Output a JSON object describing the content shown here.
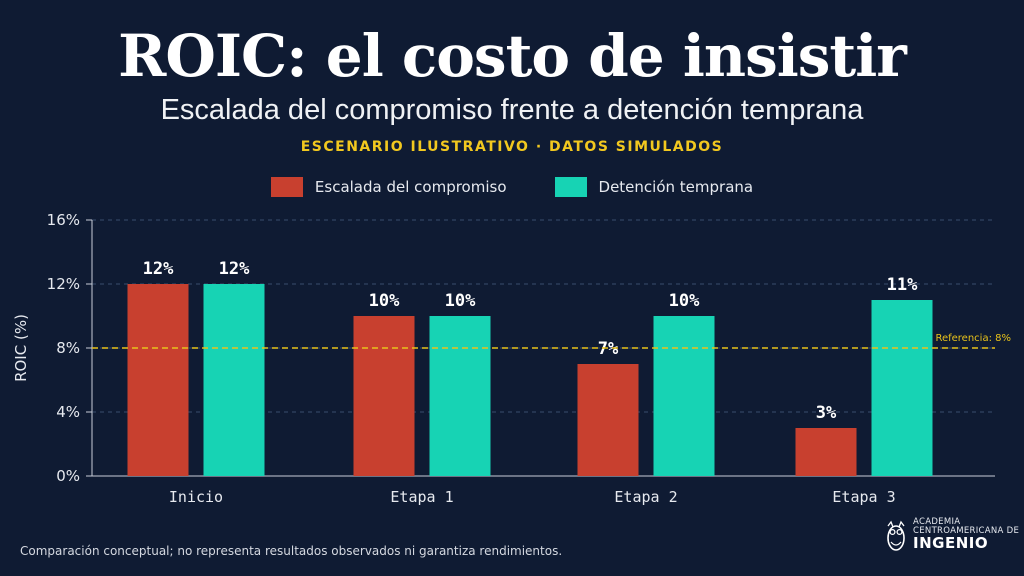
{
  "header": {
    "title": "ROIC: el costo de insistir",
    "subtitle": "Escalada del compromiso frente a detención temprana",
    "tagline": "ESCENARIO ILUSTRATIVO · DATOS SIMULADOS"
  },
  "colors": {
    "series_a": "#c8402f",
    "series_b": "#17d3b4",
    "reference": "#e8c21a",
    "grid": "#3a4c6e",
    "axis_text": "#e6e9ef"
  },
  "chart_data": {
    "type": "bar",
    "categories": [
      "Inicio",
      "Etapa 1",
      "Etapa 2",
      "Etapa 3"
    ],
    "series": [
      {
        "name": "Escalada del compromiso",
        "values": [
          12,
          10,
          7,
          3
        ],
        "labels": [
          "12%",
          "10%",
          "7%",
          "3%"
        ]
      },
      {
        "name": "Detención temprana",
        "values": [
          12,
          10,
          10,
          11
        ],
        "labels": [
          "12%",
          "10%",
          "10%",
          "11%"
        ]
      }
    ],
    "ylabel": "ROIC (%)",
    "ylim": [
      0,
      16
    ],
    "yticks": [
      0,
      4,
      8,
      12,
      16
    ],
    "ytick_labels": [
      "0%",
      "4%",
      "8%",
      "12%",
      "16%"
    ],
    "grid": true,
    "legend_position": "top-center",
    "reference_line": {
      "value": 8,
      "label": "Referencia: 8%"
    }
  },
  "footer": {
    "note": "Comparación conceptual; no representa resultados observados ni garantiza rendimientos.",
    "logo_line1": "ACADEMIA",
    "logo_line2": "CENTROAMERICANA DE",
    "logo_line3": "INGENIO",
    "logo_icon": "owl-icon"
  }
}
